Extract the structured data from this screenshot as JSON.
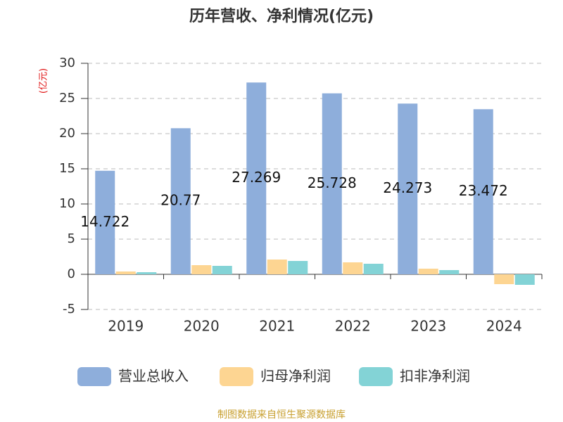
{
  "chart_data": {
    "type": "bar",
    "title": "历年营收、净利情况(亿元)",
    "y_label": "(亿元)",
    "source": "制图数据来自恒生聚源数据库",
    "categories": [
      "2019",
      "2020",
      "2021",
      "2022",
      "2023",
      "2024"
    ],
    "series": [
      {
        "name": "营业总收入",
        "color": "#8eaedb",
        "values": [
          14.722,
          20.77,
          27.269,
          25.728,
          24.273,
          23.472
        ],
        "labels": true
      },
      {
        "name": "归母净利润",
        "color": "#fdd592",
        "values": [
          0.4,
          1.3,
          2.1,
          1.7,
          0.8,
          -1.4
        ]
      },
      {
        "name": "扣非净利润",
        "color": "#83d3d6",
        "values": [
          0.3,
          1.2,
          1.9,
          1.5,
          0.6,
          -1.5
        ]
      }
    ],
    "ylim": [
      -5,
      30
    ],
    "yticks": [
      -5,
      0,
      5,
      10,
      15,
      20,
      25,
      30
    ],
    "grid": true
  }
}
